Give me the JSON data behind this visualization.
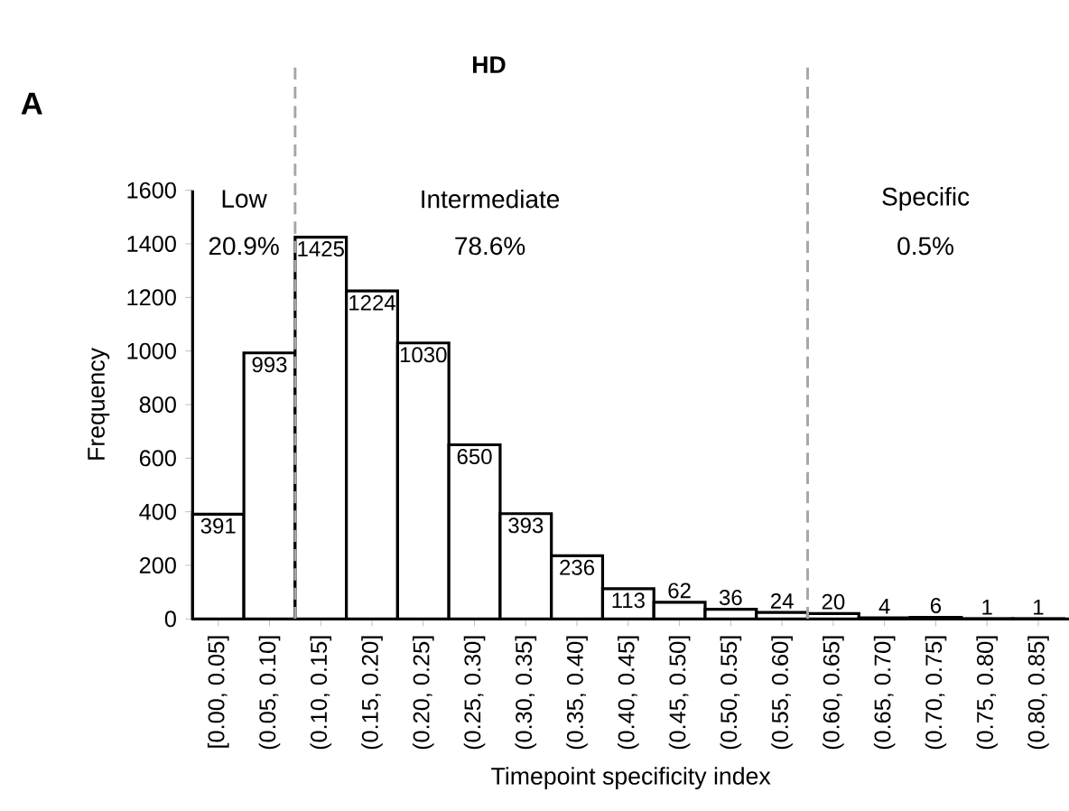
{
  "chart_data": {
    "type": "bar",
    "title": "HD",
    "xlabel": "Timepoint  specificity index",
    "ylabel": "Frequency",
    "categories": [
      "[0.00, 0.05]",
      "(0.05, 0.10]",
      "(0.10, 0.15]",
      "(0.15, 0.20]",
      "(0.20, 0.25]",
      "(0.25, 0.30]",
      "(0.30, 0.35]",
      "(0.35, 0.40]",
      "(0.40, 0.45]",
      "(0.45, 0.50]",
      "(0.50, 0.55]",
      "(0.55, 0.60]",
      "(0.60, 0.65]",
      "(0.65, 0.70]",
      "(0.70, 0.75]",
      "(0.75, 0.80]",
      "(0.80, 0.85]"
    ],
    "values": [
      391,
      993,
      1425,
      1224,
      1030,
      650,
      393,
      236,
      113,
      62,
      36,
      24,
      20,
      4,
      6,
      1,
      1
    ],
    "color": "#ffffff",
    "data_labels": true,
    "ylim": [
      0,
      1600
    ],
    "yticks": [
      0,
      200,
      400,
      600,
      800,
      1000,
      1200,
      1400,
      1600
    ],
    "annotations": [
      "A",
      "Low",
      "Intermediate",
      "Specific",
      "20.9%",
      "78.6%",
      "0.5%"
    ]
  }
}
